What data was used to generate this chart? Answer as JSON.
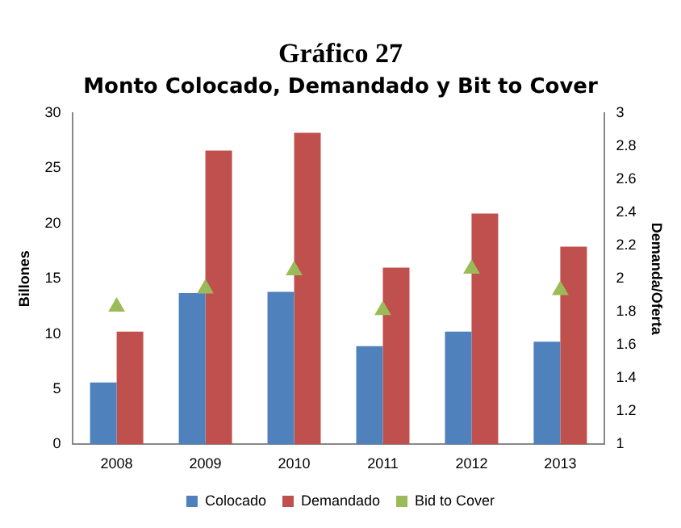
{
  "chart_data": {
    "type": "bar",
    "title": "Gráfico 27",
    "subtitle": "Monto Colocado, Demandado y Bit to Cover",
    "ylabel": "Billones",
    "y2label": "Demanda/Oferta",
    "categories": [
      "2008",
      "2009",
      "2010",
      "2011",
      "2012",
      "2013"
    ],
    "series": [
      {
        "name": "Colocado",
        "color": "#4f81bd",
        "values": [
          5.6,
          13.7,
          13.8,
          8.9,
          10.2,
          9.3
        ]
      },
      {
        "name": "Demandado",
        "color": "#c0504d",
        "values": [
          10.2,
          26.6,
          28.2,
          16.0,
          20.9,
          17.9
        ]
      },
      {
        "name": "Bid to Cover",
        "type": "scatter",
        "axis": "y2",
        "color": "#9bbb59",
        "marker": "triangle",
        "values": [
          1.83,
          1.94,
          2.05,
          1.81,
          2.06,
          1.93
        ]
      }
    ],
    "ylim": [
      0,
      30
    ],
    "yticks": [
      0,
      5,
      10,
      15,
      20,
      25,
      30
    ],
    "y2lim": [
      1,
      3
    ],
    "y2ticks": [
      1,
      1.2,
      1.4,
      1.6,
      1.8,
      2,
      2.2,
      2.4,
      2.6,
      2.8,
      3
    ],
    "grid": false,
    "legend": "bottom"
  }
}
